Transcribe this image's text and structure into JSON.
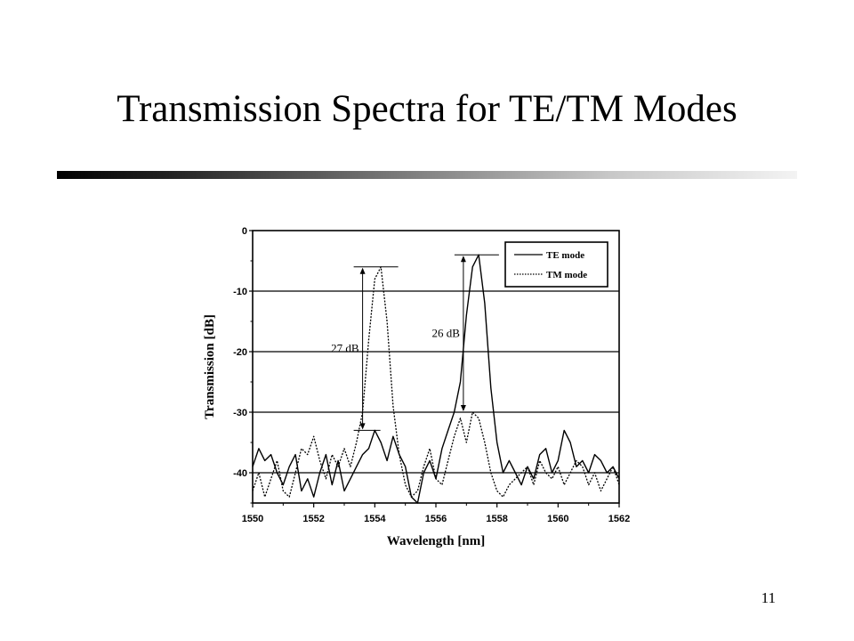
{
  "slide": {
    "title": "Transmission Spectra for TE/TM Modes",
    "page_number": "11"
  },
  "chart_data": {
    "type": "line",
    "xlabel": "Wavelength [nm]",
    "ylabel": "Transmission [dB]",
    "xlim": [
      1550,
      1562
    ],
    "ylim": [
      -45,
      0
    ],
    "xticks": [
      1550,
      1552,
      1554,
      1556,
      1558,
      1560,
      1562
    ],
    "yticks": [
      0,
      -10,
      -20,
      -30,
      -40
    ],
    "grid": "horizontal",
    "legend": "top-right",
    "series": [
      {
        "name": "TE mode",
        "style": "solid",
        "x": [
          1550.0,
          1550.2,
          1550.4,
          1550.6,
          1550.8,
          1551.0,
          1551.2,
          1551.4,
          1551.6,
          1551.8,
          1552.0,
          1552.2,
          1552.4,
          1552.6,
          1552.8,
          1553.0,
          1553.2,
          1553.4,
          1553.6,
          1553.8,
          1554.0,
          1554.2,
          1554.4,
          1554.6,
          1554.8,
          1555.0,
          1555.2,
          1555.4,
          1555.6,
          1555.8,
          1556.0,
          1556.2,
          1556.4,
          1556.6,
          1556.8,
          1557.0,
          1557.2,
          1557.4,
          1557.6,
          1557.8,
          1558.0,
          1558.2,
          1558.4,
          1558.6,
          1558.8,
          1559.0,
          1559.2,
          1559.4,
          1559.6,
          1559.8,
          1560.0,
          1560.2,
          1560.4,
          1560.6,
          1560.8,
          1561.0,
          1561.2,
          1561.4,
          1561.6,
          1561.8,
          1562.0
        ],
        "y": [
          -39,
          -36,
          -38,
          -37,
          -40,
          -42,
          -39,
          -37,
          -43,
          -41,
          -44,
          -40,
          -37,
          -42,
          -38,
          -43,
          -41,
          -39,
          -37,
          -36,
          -33,
          -35,
          -38,
          -34,
          -37,
          -39,
          -44,
          -45,
          -40,
          -38,
          -41,
          -36,
          -33,
          -30,
          -25,
          -14,
          -6,
          -4,
          -12,
          -26,
          -35,
          -40,
          -38,
          -40,
          -42,
          -39,
          -41,
          -37,
          -36,
          -40,
          -38,
          -33,
          -35,
          -39,
          -38,
          -40,
          -37,
          -38,
          -40,
          -39,
          -41
        ]
      },
      {
        "name": "TM mode",
        "style": "dotted",
        "x": [
          1550.0,
          1550.2,
          1550.4,
          1550.6,
          1550.8,
          1551.0,
          1551.2,
          1551.4,
          1551.6,
          1551.8,
          1552.0,
          1552.2,
          1552.4,
          1552.6,
          1552.8,
          1553.0,
          1553.2,
          1553.4,
          1553.6,
          1553.8,
          1554.0,
          1554.2,
          1554.4,
          1554.6,
          1554.8,
          1555.0,
          1555.2,
          1555.4,
          1555.6,
          1555.8,
          1556.0,
          1556.2,
          1556.4,
          1556.6,
          1556.8,
          1557.0,
          1557.2,
          1557.4,
          1557.6,
          1557.8,
          1558.0,
          1558.2,
          1558.4,
          1558.6,
          1558.8,
          1559.0,
          1559.2,
          1559.4,
          1559.6,
          1559.8,
          1560.0,
          1560.2,
          1560.4,
          1560.6,
          1560.8,
          1561.0,
          1561.2,
          1561.4,
          1561.6,
          1561.8,
          1562.0
        ],
        "y": [
          -43,
          -40,
          -44,
          -41,
          -38,
          -43,
          -44,
          -40,
          -36,
          -37,
          -34,
          -38,
          -41,
          -37,
          -39,
          -36,
          -39,
          -35,
          -30,
          -18,
          -8,
          -6,
          -15,
          -29,
          -37,
          -42,
          -44,
          -43,
          -39,
          -36,
          -41,
          -42,
          -38,
          -34,
          -31,
          -35,
          -30,
          -31,
          -35,
          -40,
          -43,
          -44,
          -42,
          -41,
          -40,
          -39,
          -42,
          -38,
          -40,
          -41,
          -39,
          -42,
          -40,
          -38,
          -39,
          -42,
          -40,
          -43,
          -41,
          -39,
          -42
        ]
      }
    ],
    "annotations": [
      {
        "text": "27 dB",
        "x": 1553.6,
        "y_top": -6,
        "y_bottom": -33
      },
      {
        "text": "26 dB",
        "x": 1556.9,
        "y_top": -4,
        "y_bottom": -30
      }
    ]
  },
  "colors": {
    "line": "#000000",
    "grid": "#000000",
    "background": "#ffffff"
  }
}
